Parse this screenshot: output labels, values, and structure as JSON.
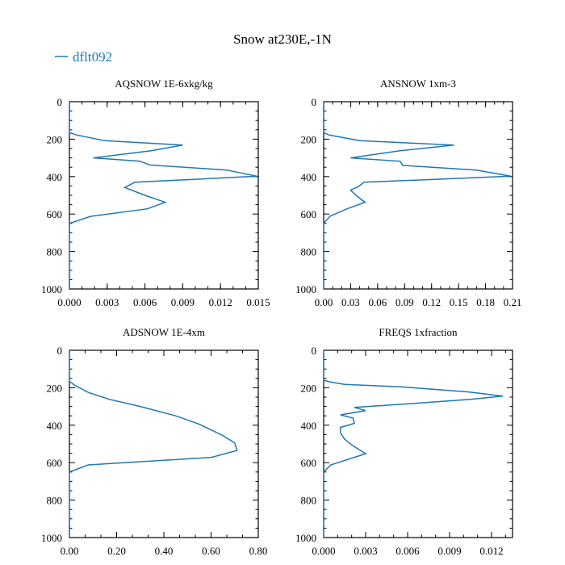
{
  "title": "Snow at230E,-1N",
  "legend": {
    "label": "dflt092",
    "color": "#1f77b4"
  },
  "chart_data": [
    {
      "type": "line",
      "title": "AQSNOW  1E-6xkg/kg",
      "xlim": [
        0,
        0.015
      ],
      "ylim": [
        1000,
        0
      ],
      "xticks": [
        "0.000",
        "0.003",
        "0.006",
        "0.009",
        "0.012",
        "0.015"
      ],
      "yticks": [
        "0",
        "200",
        "400",
        "600",
        "800",
        "1000"
      ],
      "series": [
        {
          "name": "dflt092",
          "x": [
            0,
            0,
            0.0006,
            0.0028,
            0.009,
            0.0065,
            0.0019,
            0.0056,
            0.0064,
            0.0125,
            0.0149,
            0.0052,
            0.0044,
            0.006,
            0.0076,
            0.0062,
            0.0017,
            0,
            0
          ],
          "y": [
            0,
            165,
            178,
            208,
            232,
            262,
            300,
            318,
            338,
            365,
            398,
            430,
            458,
            500,
            537,
            572,
            612,
            650,
            1000
          ]
        }
      ]
    },
    {
      "type": "line",
      "title": "ANSNOW  1xm-3",
      "xlim": [
        0,
        0.21
      ],
      "ylim": [
        1000,
        0
      ],
      "xticks": [
        "0.00",
        "0.03",
        "0.06",
        "0.09",
        "0.12",
        "0.15",
        "0.18",
        "0.21"
      ],
      "yticks": [
        "0",
        "200",
        "400",
        "600",
        "800",
        "1000"
      ],
      "series": [
        {
          "name": "dflt092",
          "x": [
            0,
            0,
            0.006,
            0.04,
            0.145,
            0.085,
            0.03,
            0.085,
            0.088,
            0.17,
            0.208,
            0.045,
            0.038,
            0.03,
            0.036,
            0.046,
            0.026,
            0.007,
            0,
            0
          ],
          "y": [
            0,
            165,
            178,
            208,
            232,
            262,
            300,
            318,
            340,
            365,
            398,
            430,
            455,
            472,
            500,
            537,
            572,
            612,
            650,
            1000
          ]
        }
      ]
    },
    {
      "type": "line",
      "title": "ADSNOW  1E-4xm",
      "xlim": [
        0,
        0.8
      ],
      "ylim": [
        1000,
        0
      ],
      "xticks": [
        "0.00",
        "0.20",
        "0.40",
        "0.60",
        "0.80"
      ],
      "yticks": [
        "0",
        "200",
        "400",
        "600",
        "800",
        "1000"
      ],
      "series": [
        {
          "name": "dflt092",
          "x": [
            0,
            0,
            0.02,
            0.08,
            0.17,
            0.3,
            0.45,
            0.55,
            0.65,
            0.7,
            0.71,
            0.6,
            0.08,
            0,
            0
          ],
          "y": [
            0,
            165,
            185,
            225,
            262,
            300,
            350,
            395,
            455,
            495,
            535,
            572,
            612,
            650,
            1000
          ]
        }
      ]
    },
    {
      "type": "line",
      "title": "FREQS  1xfraction",
      "xlim": [
        0,
        0.0135
      ],
      "ylim": [
        1000,
        0
      ],
      "xticks": [
        "0.000",
        "0.003",
        "0.006",
        "0.009",
        "0.012"
      ],
      "yticks": [
        "0",
        "200",
        "400",
        "600",
        "800",
        "1000"
      ],
      "series": [
        {
          "name": "dflt092",
          "x": [
            0,
            0,
            0.0005,
            0.0015,
            0.0055,
            0.0103,
            0.0128,
            0.0105,
            0.0062,
            0.0022,
            0.003,
            0.0012,
            0.0021,
            0.0022,
            0.0012,
            0.0012,
            0.0015,
            0.0021,
            0.003,
            0.0005,
            0,
            0
          ],
          "y": [
            0,
            160,
            170,
            182,
            195,
            222,
            245,
            262,
            285,
            305,
            322,
            345,
            362,
            390,
            412,
            440,
            475,
            510,
            552,
            612,
            650,
            1000
          ]
        }
      ]
    }
  ]
}
